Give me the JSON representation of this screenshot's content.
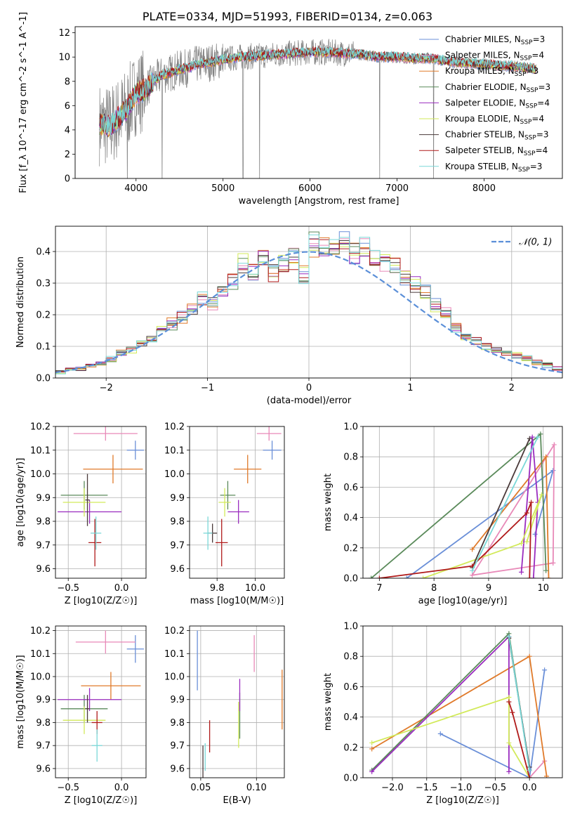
{
  "title": "PLATE=0334, MJD=51993, FIBERID=0134, z=0.063",
  "colors": {
    "chabrier_miles": "#6a8fd8",
    "salpeter_miles": "#e889b8",
    "kroupa_miles": "#e07a2a",
    "chabrier_elodie": "#5a8a5a",
    "salpeter_elodie": "#9a2cbf",
    "kroupa_elodie": "#d2ea5a",
    "chabrier_stelib": "#4a3a3a",
    "salpeter_stelib": "#b01a1a",
    "kroupa_stelib": "#7ad8d8",
    "data": "#808080",
    "normal": "#5b8fd8",
    "grid": "#b0b0b0"
  },
  "chart_data": [
    {
      "id": "spectrum",
      "type": "line",
      "xlabel": "wavelength [Angstrom, rest frame]",
      "ylabel": "Flux [f_λ 10^-17 erg cm^-2 s^-1 A^-1]",
      "xlim": [
        3300,
        8900
      ],
      "ylim": [
        0,
        12.5
      ],
      "xticks": [
        4000,
        5000,
        6000,
        7000,
        8000
      ],
      "yticks": [
        0,
        2,
        4,
        6,
        8,
        10,
        12
      ],
      "grid": false,
      "legend_position": "right",
      "legend": [
        {
          "key": "chabrier_miles",
          "label": "Chabrier MILES, N",
          "sub": "SSP",
          "suffix": "=3"
        },
        {
          "key": "salpeter_miles",
          "label": "Salpeter MILES, N",
          "sub": "SSP",
          "suffix": "=4"
        },
        {
          "key": "kroupa_miles",
          "label": "Kroupa MILES, N",
          "sub": "SSP",
          "suffix": "=3"
        },
        {
          "key": "chabrier_elodie",
          "label": "Chabrier ELODIE, N",
          "sub": "SSP",
          "suffix": "=3"
        },
        {
          "key": "salpeter_elodie",
          "label": "Salpeter ELODIE, N",
          "sub": "SSP",
          "suffix": "=4"
        },
        {
          "key": "kroupa_elodie",
          "label": "Kroupa ELODIE, N",
          "sub": "SSP",
          "suffix": "=4"
        },
        {
          "key": "chabrier_stelib",
          "label": "Chabrier STELIB, N",
          "sub": "SSP",
          "suffix": "=3"
        },
        {
          "key": "salpeter_stelib",
          "label": "Salpeter STELIB, N",
          "sub": "SSP",
          "suffix": "=4"
        },
        {
          "key": "kroupa_stelib",
          "label": "Kroupa STELIB, N",
          "sub": "SSP",
          "suffix": "=3"
        }
      ],
      "model_curve": {
        "x": [
          3580,
          3700,
          3800,
          3900,
          4000,
          4100,
          4200,
          4300,
          4400,
          4500,
          4600,
          4700,
          4800,
          4900,
          5000,
          5200,
          5400,
          5600,
          5800,
          6000,
          6200,
          6400,
          6600,
          6800,
          7000,
          7200,
          7400,
          7600,
          7800,
          8000,
          8200,
          8400,
          8600
        ],
        "y": [
          4.5,
          4.3,
          5.0,
          5.8,
          7.0,
          7.3,
          8.0,
          8.5,
          8.7,
          9.0,
          9.1,
          9.4,
          9.5,
          9.6,
          9.8,
          10.0,
          10.1,
          10.2,
          10.3,
          10.4,
          10.4,
          10.3,
          10.2,
          10.0,
          10.0,
          9.9,
          9.9,
          9.6,
          9.5,
          9.4,
          9.3,
          9.2,
          9.0
        ]
      },
      "data_spikes_down": [
        3900,
        4300,
        5230,
        5420,
        6800,
        7420
      ]
    },
    {
      "id": "residuals",
      "type": "histogram",
      "xlabel": "(data-model)/error",
      "ylabel": "Normed distribution",
      "xlim": [
        -2.5,
        2.5
      ],
      "ylim": [
        0,
        0.48
      ],
      "xticks": [
        -2,
        -1,
        0,
        1,
        2
      ],
      "yticks": [
        0.0,
        0.1,
        0.2,
        0.3,
        0.4
      ],
      "grid": true,
      "legend": [
        {
          "label": "𝒩(0, 1)"
        }
      ],
      "legend_position": "top-right",
      "bin_edges": [
        -2.5,
        -2.4,
        -2.3,
        -2.2,
        -2.1,
        -2.0,
        -1.9,
        -1.8,
        -1.7,
        -1.6,
        -1.5,
        -1.4,
        -1.3,
        -1.2,
        -1.1,
        -1.0,
        -0.9,
        -0.8,
        -0.7,
        -0.6,
        -0.5,
        -0.4,
        -0.3,
        -0.2,
        -0.1,
        0.0,
        0.1,
        0.2,
        0.3,
        0.4,
        0.5,
        0.6,
        0.7,
        0.8,
        0.9,
        1.0,
        1.1,
        1.2,
        1.3,
        1.4,
        1.5,
        1.6,
        1.7,
        1.8,
        1.9,
        2.0,
        2.1,
        2.2,
        2.3,
        2.4,
        2.5
      ],
      "base_values": [
        0.02,
        0.025,
        0.03,
        0.04,
        0.045,
        0.06,
        0.08,
        0.09,
        0.11,
        0.12,
        0.15,
        0.17,
        0.19,
        0.22,
        0.25,
        0.23,
        0.27,
        0.31,
        0.36,
        0.33,
        0.38,
        0.34,
        0.36,
        0.38,
        0.33,
        0.42,
        0.42,
        0.41,
        0.43,
        0.39,
        0.41,
        0.38,
        0.36,
        0.35,
        0.32,
        0.3,
        0.27,
        0.23,
        0.2,
        0.16,
        0.13,
        0.12,
        0.1,
        0.09,
        0.08,
        0.07,
        0.06,
        0.05,
        0.04,
        0.03
      ]
    },
    {
      "id": "age_vs_Z",
      "type": "scatter",
      "xlabel": "Z [log10(Z/Z☉)]",
      "ylabel": "age [log10(age/yr)]",
      "xlim": [
        -0.62,
        0.23
      ],
      "ylim": [
        9.56,
        10.2
      ],
      "xticks": [
        -0.5,
        0.0
      ],
      "yticks": [
        9.6,
        9.7,
        9.8,
        9.9,
        10.0,
        10.1,
        10.2
      ],
      "grid": true,
      "points": [
        {
          "key": "chabrier_miles",
          "x": 0.13,
          "y": 10.1,
          "xerr": 0.08,
          "yerr": 0.04
        },
        {
          "key": "salpeter_miles",
          "x": -0.15,
          "y": 10.17,
          "xerr": 0.3,
          "yerr": 0.03
        },
        {
          "key": "kroupa_miles",
          "x": -0.08,
          "y": 10.02,
          "xerr": 0.28,
          "yerr": 0.06
        },
        {
          "key": "chabrier_elodie",
          "x": -0.35,
          "y": 9.91,
          "xerr": 0.22,
          "yerr": 0.06
        },
        {
          "key": "salpeter_elodie",
          "x": -0.3,
          "y": 9.84,
          "xerr": 0.3,
          "yerr": 0.05
        },
        {
          "key": "kroupa_elodie",
          "x": -0.35,
          "y": 9.88,
          "xerr": 0.2,
          "yerr": 0.06
        },
        {
          "key": "chabrier_stelib",
          "x": -0.32,
          "y": 9.89,
          "xerr": 0.02,
          "yerr": 0.11
        },
        {
          "key": "salpeter_stelib",
          "x": -0.25,
          "y": 9.71,
          "xerr": 0.06,
          "yerr": 0.1
        },
        {
          "key": "kroupa_stelib",
          "x": -0.24,
          "y": 9.75,
          "xerr": 0.05,
          "yerr": 0.07
        }
      ]
    },
    {
      "id": "age_vs_mass",
      "type": "scatter",
      "xlabel": "mass [log10(M/M☉)]",
      "ylabel": "",
      "xlim": [
        9.57,
        10.19
      ],
      "ylim": [
        9.56,
        10.2
      ],
      "xticks": [
        9.75,
        10.0
      ],
      "yticks": [
        9.6,
        9.7,
        9.8,
        9.9,
        10.0,
        10.1,
        10.2
      ],
      "grid": true,
      "points": [
        {
          "key": "chabrier_miles",
          "x": 10.11,
          "y": 10.1,
          "xerr": 0.06,
          "yerr": 0.04
        },
        {
          "key": "salpeter_miles",
          "x": 10.09,
          "y": 10.17,
          "xerr": 0.08,
          "yerr": 0.03
        },
        {
          "key": "kroupa_miles",
          "x": 9.95,
          "y": 10.02,
          "xerr": 0.09,
          "yerr": 0.06
        },
        {
          "key": "chabrier_elodie",
          "x": 9.82,
          "y": 9.91,
          "xerr": 0.05,
          "yerr": 0.06
        },
        {
          "key": "salpeter_elodie",
          "x": 9.89,
          "y": 9.84,
          "xerr": 0.07,
          "yerr": 0.05
        },
        {
          "key": "kroupa_elodie",
          "x": 9.8,
          "y": 9.88,
          "xerr": 0.04,
          "yerr": 0.06
        },
        {
          "key": "chabrier_stelib",
          "x": 9.72,
          "y": 9.75,
          "xerr": 0.03,
          "yerr": 0.04
        },
        {
          "key": "salpeter_stelib",
          "x": 9.78,
          "y": 9.71,
          "xerr": 0.04,
          "yerr": 0.1
        },
        {
          "key": "kroupa_stelib",
          "x": 9.69,
          "y": 9.75,
          "xerr": 0.03,
          "yerr": 0.07
        }
      ]
    },
    {
      "id": "mass_weight_vs_age",
      "type": "line",
      "xlabel": "age [log10(age/yr)]",
      "ylabel": "mass weight",
      "xlim": [
        6.7,
        10.35
      ],
      "ylim": [
        0,
        1.0
      ],
      "xticks": [
        7,
        8,
        9,
        10
      ],
      "yticks": [
        0.0,
        0.2,
        0.4,
        0.6,
        0.8,
        1.0
      ],
      "grid": true,
      "series": [
        {
          "key": "chabrier_miles",
          "x": [
            9.85,
            10.18,
            7.5
          ],
          "y": [
            0.29,
            0.71,
            0.0
          ]
        },
        {
          "key": "salpeter_miles",
          "x": [
            10.18,
            10.2,
            8.7,
            10.18
          ],
          "y": [
            0.1,
            0.88,
            0.02,
            0.1
          ]
        },
        {
          "key": "kroupa_miles",
          "x": [
            10.1,
            10.05,
            8.7
          ],
          "y": [
            0.0,
            0.8,
            0.19
          ]
        },
        {
          "key": "chabrier_elodie",
          "x": [
            6.85,
            9.95,
            10.05
          ],
          "y": [
            0.0,
            0.95,
            0.05
          ]
        },
        {
          "key": "salpeter_elodie",
          "x": [
            9.6,
            9.8,
            9.9,
            9.82
          ],
          "y": [
            0.04,
            0.93,
            0.5,
            0.0
          ]
        },
        {
          "key": "kroupa_elodie",
          "x": [
            9.7,
            9.97,
            9.6,
            7.8
          ],
          "y": [
            0.24,
            0.55,
            0.23,
            0.0
          ]
        },
        {
          "key": "chabrier_stelib",
          "x": [
            8.7,
            9.75
          ],
          "y": [
            0.07,
            0.92
          ]
        },
        {
          "key": "salpeter_stelib",
          "x": [
            7.0,
            8.7,
            9.7,
            9.78,
            9.75
          ],
          "y": [
            0.0,
            0.08,
            0.43,
            0.5,
            0.0
          ]
        },
        {
          "key": "kroupa_stelib",
          "x": [
            9.9,
            8.7,
            9.9
          ],
          "y": [
            0.93,
            0.05,
            0.93
          ]
        }
      ]
    },
    {
      "id": "mass_vs_Z",
      "type": "scatter",
      "xlabel": "Z [log10(Z/Z☉)]",
      "ylabel": "mass [log10(M/M☉)]",
      "xlim": [
        -0.62,
        0.23
      ],
      "ylim": [
        9.56,
        10.22
      ],
      "xticks": [
        -0.5,
        0.0
      ],
      "yticks": [
        9.6,
        9.7,
        9.8,
        9.9,
        10.0,
        10.1,
        10.2
      ],
      "grid": true,
      "points": [
        {
          "key": "chabrier_miles",
          "x": 0.13,
          "y": 10.12,
          "xerr": 0.08,
          "yerr": 0.06
        },
        {
          "key": "salpeter_miles",
          "x": -0.15,
          "y": 10.15,
          "xerr": 0.28,
          "yerr": 0.05
        },
        {
          "key": "kroupa_miles",
          "x": -0.1,
          "y": 9.96,
          "xerr": 0.28,
          "yerr": 0.06
        },
        {
          "key": "chabrier_elodie",
          "x": -0.35,
          "y": 9.86,
          "xerr": 0.22,
          "yerr": 0.06
        },
        {
          "key": "salpeter_elodie",
          "x": -0.3,
          "y": 9.9,
          "xerr": 0.3,
          "yerr": 0.05
        },
        {
          "key": "kroupa_elodie",
          "x": -0.35,
          "y": 9.81,
          "xerr": 0.2,
          "yerr": 0.06
        },
        {
          "key": "chabrier_stelib",
          "x": -0.32,
          "y": 9.86,
          "xerr": 0.02,
          "yerr": 0.06
        },
        {
          "key": "salpeter_stelib",
          "x": -0.23,
          "y": 9.8,
          "xerr": 0.05,
          "yerr": 0.05
        },
        {
          "key": "kroupa_stelib",
          "x": -0.23,
          "y": 9.7,
          "xerr": 0.05,
          "yerr": 0.07
        }
      ]
    },
    {
      "id": "mass_vs_EBV",
      "type": "scatter",
      "xlabel": "E(B-V)",
      "ylabel": "",
      "xlim": [
        0.04,
        0.125
      ],
      "ylim": [
        9.56,
        10.22
      ],
      "xticks": [
        0.05,
        0.1
      ],
      "yticks": [
        9.6,
        9.7,
        9.8,
        9.9,
        10.0,
        10.1,
        10.2
      ],
      "grid": true,
      "points": [
        {
          "key": "chabrier_miles",
          "x": 0.047,
          "y": 10.07,
          "xerr": 0,
          "yerr": 0.13
        },
        {
          "key": "salpeter_miles",
          "x": 0.098,
          "y": 10.1,
          "xerr": 0,
          "yerr": 0.08
        },
        {
          "key": "kroupa_miles",
          "x": 0.123,
          "y": 9.9,
          "xerr": 0,
          "yerr": 0.13
        },
        {
          "key": "chabrier_elodie",
          "x": 0.085,
          "y": 9.83,
          "xerr": 0,
          "yerr": 0.1
        },
        {
          "key": "salpeter_elodie",
          "x": 0.085,
          "y": 9.92,
          "xerr": 0,
          "yerr": 0.07
        },
        {
          "key": "kroupa_elodie",
          "x": 0.084,
          "y": 9.79,
          "xerr": 0,
          "yerr": 0.1
        },
        {
          "key": "chabrier_stelib",
          "x": 0.052,
          "y": 9.63,
          "xerr": 0,
          "yerr": 0.07
        },
        {
          "key": "salpeter_stelib",
          "x": 0.058,
          "y": 9.74,
          "xerr": 0,
          "yerr": 0.07
        },
        {
          "key": "kroupa_stelib",
          "x": 0.054,
          "y": 9.65,
          "xerr": 0,
          "yerr": 0.06
        }
      ]
    },
    {
      "id": "mass_weight_vs_Z",
      "type": "line",
      "xlabel": "Z [log10(Z/Z☉)]",
      "ylabel": "mass weight",
      "xlim": [
        -2.43,
        0.48
      ],
      "ylim": [
        0,
        1.0
      ],
      "xticks": [
        -2.0,
        -1.5,
        -1.0,
        -0.5,
        0.0
      ],
      "yticks": [
        0.0,
        0.2,
        0.4,
        0.6,
        0.8,
        1.0
      ],
      "grid": true,
      "series": [
        {
          "key": "chabrier_miles",
          "x": [
            -1.3,
            0.0,
            0.22
          ],
          "y": [
            0.29,
            0.0,
            0.71
          ]
        },
        {
          "key": "salpeter_miles",
          "x": [
            0.0,
            0.22
          ],
          "y": [
            0.0,
            0.11
          ]
        },
        {
          "key": "kroupa_miles",
          "x": [
            -2.3,
            0.0,
            0.25
          ],
          "y": [
            0.19,
            0.8,
            0.01
          ]
        },
        {
          "key": "chabrier_elodie",
          "x": [
            -2.3,
            -0.3,
            0.0
          ],
          "y": [
            0.05,
            0.95,
            0.05
          ]
        },
        {
          "key": "salpeter_elodie",
          "x": [
            -2.3,
            -0.3,
            -0.3
          ],
          "y": [
            0.04,
            0.93,
            0.04
          ]
        },
        {
          "key": "kroupa_elodie",
          "x": [
            -2.3,
            -0.3,
            -0.3,
            0.0
          ],
          "y": [
            0.23,
            0.53,
            0.23,
            0.0
          ]
        },
        {
          "key": "chabrier_stelib",
          "x": [
            -0.3,
            0.0
          ],
          "y": [
            0.92,
            0.07
          ]
        },
        {
          "key": "salpeter_stelib",
          "x": [
            -0.3,
            -0.25,
            0.0
          ],
          "y": [
            0.5,
            0.43,
            0.0
          ]
        },
        {
          "key": "kroupa_stelib",
          "x": [
            -0.3,
            0.0
          ],
          "y": [
            0.93,
            0.05
          ]
        }
      ]
    }
  ]
}
